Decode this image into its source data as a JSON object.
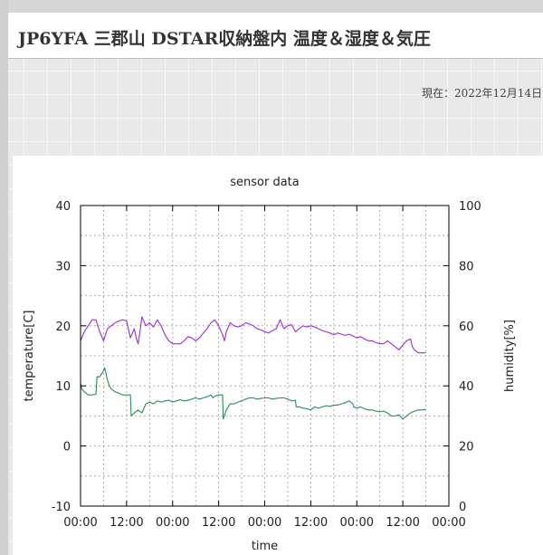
{
  "page": {
    "title": "JP6YFA 三郡山 DSTAR収納盤内 温度＆湿度＆気圧",
    "timestamp": "現在：2022年12月14日"
  },
  "chart_data": {
    "type": "line",
    "title": "sensor data",
    "xlabel": "time",
    "ylabel": "temperature[C]",
    "y2label": "humidity[%]",
    "x_ticks": [
      "00:00",
      "12:00",
      "00:00",
      "12:00",
      "00:00",
      "12:00",
      "00:00",
      "12:00",
      "00:00"
    ],
    "y_ticks": [
      "40",
      "30",
      "20",
      "10",
      "0",
      "-10"
    ],
    "y2_ticks": [
      "100",
      "80",
      "60",
      "40",
      "20",
      "0"
    ],
    "xlim_hours": [
      0,
      96
    ],
    "ylim": [
      -10,
      40
    ],
    "y2lim": [
      0,
      100
    ],
    "grid": true,
    "legend": "none",
    "series": [
      {
        "color": "#9a2ecf",
        "axis": "left",
        "x": [
          0,
          1,
          2,
          3,
          4,
          5,
          6,
          7,
          8,
          9,
          10,
          11,
          12,
          13,
          14,
          14.5,
          15,
          15.5,
          16,
          17,
          18,
          19,
          20,
          21,
          22,
          23,
          24,
          25,
          26,
          27,
          28,
          29,
          30,
          31,
          32,
          33,
          34,
          35,
          36,
          37,
          37.5,
          38,
          39,
          40,
          41,
          42,
          43,
          44,
          45,
          46,
          47,
          48,
          49,
          50,
          51,
          52,
          53,
          54,
          55,
          56,
          57,
          58,
          59,
          60,
          61,
          62,
          63,
          64,
          65,
          66,
          67,
          68,
          69,
          70,
          71,
          72,
          73,
          74,
          75,
          76,
          77,
          78,
          79,
          80,
          81,
          82,
          83,
          84,
          85,
          86,
          86.5,
          87,
          88,
          89,
          90
        ],
        "y": [
          17.5,
          19.0,
          20.0,
          21.0,
          21.0,
          19.0,
          17.5,
          19.5,
          20.0,
          20.5,
          20.8,
          21.0,
          20.8,
          18.0,
          19.5,
          18.0,
          17.0,
          19.0,
          21.5,
          20.0,
          20.5,
          19.8,
          21.0,
          20.0,
          18.5,
          17.5,
          17.0,
          17.0,
          17.0,
          17.5,
          18.2,
          18.0,
          17.5,
          18.0,
          18.8,
          19.5,
          20.5,
          21.0,
          20.0,
          18.5,
          17.5,
          19.0,
          20.5,
          20.0,
          19.8,
          20.0,
          20.5,
          20.3,
          20.0,
          19.5,
          19.3,
          19.0,
          18.8,
          19.2,
          19.5,
          21.0,
          19.5,
          20.0,
          20.2,
          19.0,
          19.5,
          20.0,
          19.8,
          20.0,
          19.8,
          19.5,
          19.2,
          19.0,
          18.8,
          18.5,
          18.8,
          18.6,
          18.4,
          18.6,
          18.3,
          18.0,
          18.2,
          17.8,
          17.5,
          17.5,
          17.2,
          17.0,
          17.0,
          17.5,
          17.0,
          16.5,
          16.0,
          16.8,
          17.5,
          17.8,
          16.5,
          16.0,
          15.5,
          15.5,
          15.5
        ]
      },
      {
        "color": "#2e8b57",
        "axis": "left",
        "x": [
          0,
          0.3,
          1,
          2,
          3,
          4,
          4.3,
          5,
          6,
          6.3,
          7,
          7.5,
          8,
          9,
          10,
          11,
          12,
          13,
          13.2,
          14,
          15,
          16,
          17,
          18,
          19,
          20,
          21,
          22,
          23,
          24,
          25,
          26,
          27,
          28,
          29,
          30,
          31,
          32,
          33,
          34,
          34.5,
          35,
          36,
          37,
          37.2,
          38,
          38.5,
          39,
          40,
          41,
          42,
          43,
          44,
          45,
          46,
          47,
          48,
          49,
          50,
          51,
          52,
          53,
          54,
          55,
          56,
          56.2,
          57,
          58,
          59,
          60,
          61,
          62,
          63,
          64,
          65,
          66,
          67,
          68,
          69,
          70,
          71,
          71.2,
          72,
          73,
          74,
          75,
          76,
          77,
          78,
          79,
          80,
          81,
          82,
          83,
          84,
          85,
          86,
          87,
          88,
          89,
          90
        ],
        "y": [
          10.5,
          9.5,
          9.0,
          8.5,
          8.5,
          8.6,
          11.5,
          11.5,
          12.5,
          13.0,
          11.0,
          10.0,
          9.5,
          9.0,
          8.8,
          8.5,
          8.5,
          8.5,
          5.0,
          5.5,
          6.0,
          5.5,
          7.0,
          7.3,
          7.0,
          7.5,
          7.3,
          7.5,
          7.6,
          7.3,
          7.5,
          7.7,
          7.5,
          7.6,
          7.8,
          8.0,
          7.8,
          8.0,
          8.2,
          8.5,
          8.0,
          8.3,
          8.5,
          8.5,
          4.5,
          6.0,
          6.5,
          7.0,
          7.0,
          7.3,
          7.5,
          7.8,
          8.0,
          8.0,
          7.8,
          7.9,
          8.0,
          8.0,
          7.8,
          7.9,
          8.0,
          8.0,
          7.8,
          7.5,
          7.6,
          6.5,
          6.5,
          6.3,
          6.2,
          6.0,
          6.5,
          6.3,
          6.5,
          6.7,
          6.6,
          6.8,
          6.8,
          7.0,
          7.2,
          7.5,
          7.0,
          6.5,
          6.3,
          6.5,
          6.2,
          6.0,
          6.0,
          5.8,
          5.7,
          5.8,
          5.5,
          5.0,
          5.0,
          5.2,
          4.5,
          5.0,
          5.5,
          5.8,
          6.0,
          6.0,
          6.1
        ]
      }
    ]
  }
}
